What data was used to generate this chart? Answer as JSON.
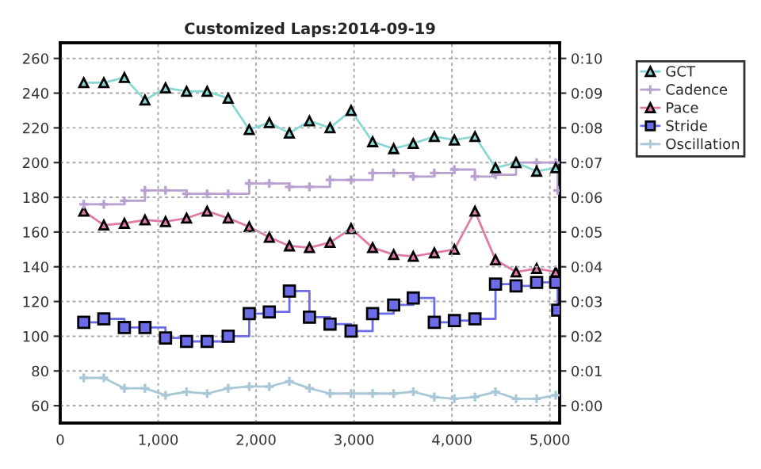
{
  "chart_data": {
    "type": "line",
    "title": "Customized Laps:2014-09-19",
    "x": [
      240,
      445,
      655,
      865,
      1075,
      1290,
      1500,
      1715,
      1930,
      2135,
      2340,
      2545,
      2755,
      2970,
      3190,
      3405,
      3605,
      3820,
      4025,
      4235,
      4445,
      4655,
      4865,
      5060,
      5080
    ],
    "series": [
      {
        "name": "GCT",
        "color": "#8ad8d4",
        "marker": "triangle",
        "values": [
          246,
          246,
          249,
          236,
          243,
          241,
          241,
          237,
          219,
          223,
          217,
          224,
          220,
          230,
          212,
          208,
          211,
          215,
          213,
          215,
          197,
          200,
          195,
          197,
          null
        ]
      },
      {
        "name": "Cadence",
        "color": "#b8a0d0",
        "marker": "cross",
        "type": "step",
        "values": [
          176,
          176,
          178,
          184,
          184,
          182,
          182,
          182,
          188,
          188,
          186,
          186,
          190,
          190,
          194,
          194,
          192,
          194,
          196,
          192,
          193,
          200,
          200,
          200,
          184
        ]
      },
      {
        "name": "Pace",
        "color": "#e07aa8",
        "marker": "triangle",
        "axis": "y2",
        "values": [
          5.6,
          5.2,
          5.25,
          5.35,
          5.3,
          5.4,
          5.6,
          5.4,
          5.15,
          4.85,
          4.6,
          4.55,
          4.7,
          5.1,
          4.55,
          4.35,
          4.3,
          4.4,
          4.5,
          5.6,
          4.2,
          3.85,
          3.95,
          3.85,
          null
        ]
      },
      {
        "name": "Stride",
        "color": "#6c6ce8",
        "marker": "square",
        "type": "step",
        "values": [
          108,
          110,
          105,
          105,
          99,
          97,
          97,
          100,
          113,
          114,
          126,
          111,
          107,
          103,
          113,
          118,
          122,
          108,
          109,
          110,
          130,
          129,
          131,
          131,
          115
        ]
      },
      {
        "name": "Oscillation",
        "color": "#a8c8d8",
        "marker": "cross",
        "values": [
          76,
          76,
          70,
          70,
          66,
          68,
          67,
          70,
          71,
          71,
          74,
          70,
          67,
          67,
          67,
          67,
          68,
          65,
          64,
          65,
          68,
          64,
          64,
          66,
          null
        ]
      }
    ],
    "xlim": [
      0,
      5100
    ],
    "xticks": [
      0,
      {
        "value": 1000,
        "label": "1,000"
      },
      {
        "value": 2000,
        "label": "2,000"
      },
      {
        "value": 3000,
        "label": "3,000"
      },
      {
        "value": 4000,
        "label": "4,000"
      },
      {
        "value": 5000,
        "label": "5,000"
      }
    ],
    "ylim": [
      50,
      269
    ],
    "yticks": [
      60,
      80,
      100,
      120,
      140,
      160,
      180,
      200,
      220,
      240,
      260
    ],
    "y2lim": [
      -0.5,
      10.45
    ],
    "y2ticks": [
      {
        "value": 0,
        "label": "0:00"
      },
      {
        "value": 1,
        "label": "0:01"
      },
      {
        "value": 2,
        "label": "0:02"
      },
      {
        "value": 3,
        "label": "0:03"
      },
      {
        "value": 4,
        "label": "0:04"
      },
      {
        "value": 5,
        "label": "0:05"
      },
      {
        "value": 6,
        "label": "0:06"
      },
      {
        "value": 7,
        "label": "0:07"
      },
      {
        "value": 8,
        "label": "0:08"
      },
      {
        "value": 9,
        "label": "0:09"
      },
      {
        "value": 10,
        "label": "0:10"
      }
    ],
    "grid": true,
    "legend": "top right"
  }
}
